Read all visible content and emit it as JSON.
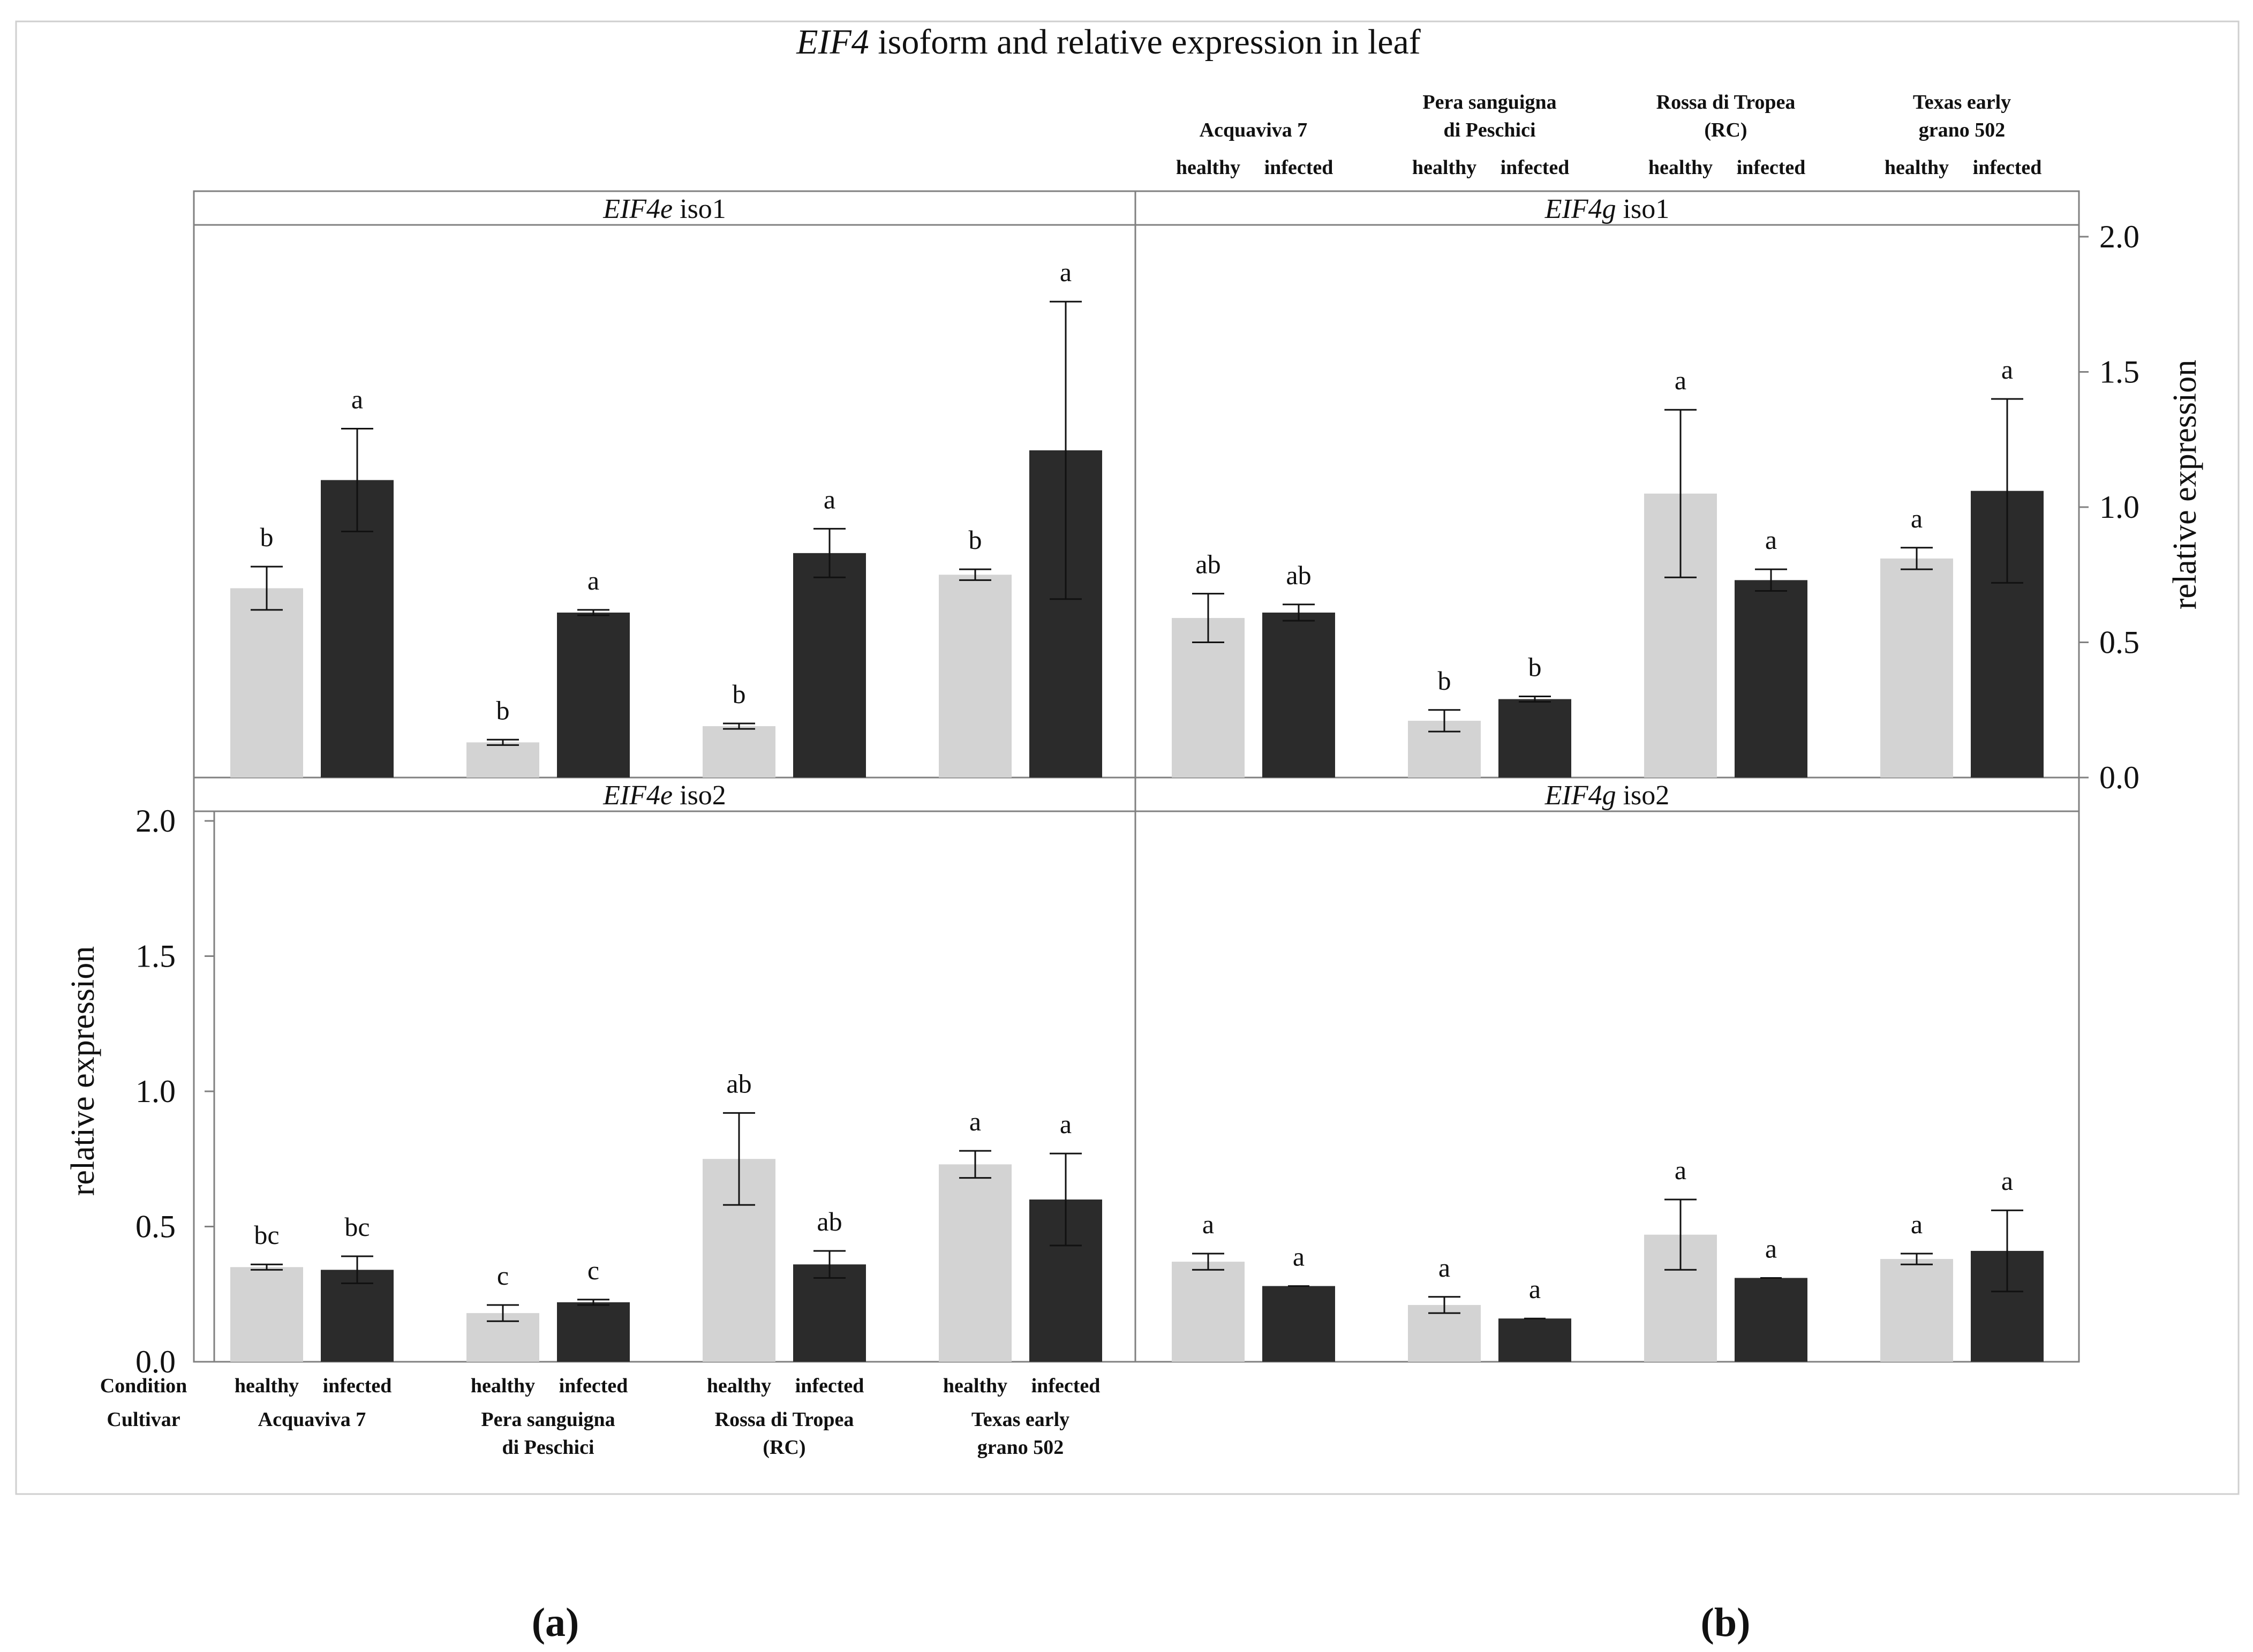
{
  "figure": {
    "title_italic": "EIF4",
    "title_rest": " isoform and relative expression in leaf",
    "ylabel": "relative expression",
    "condition_row_label": "Condition",
    "cultivar_row_label": "Cultivar",
    "conditions": [
      "healthy",
      "infected"
    ],
    "cultivars": [
      [
        "Acquaviva 7"
      ],
      [
        "Pera sanguigna",
        "di Peschici"
      ],
      [
        "Rossa di Tropea",
        "(RC)"
      ],
      [
        "Texas early",
        "grano 502"
      ]
    ],
    "yticks": [
      "0.0",
      "0.5",
      "1.0",
      "1.5",
      "2.0"
    ],
    "subfig_labels": [
      "(a)",
      "(b)"
    ],
    "colors": {
      "healthy": "#d3d3d3",
      "infected": "#2b2b2b",
      "frame": "#808080"
    }
  },
  "chart_data": [
    {
      "type": "bar",
      "panel": "EIF4e iso1",
      "panel_italic": "EIF4e",
      "panel_rest": " iso1",
      "ylim": [
        0,
        2.0
      ],
      "categories": [
        "Acquaviva 7",
        "Pera sanguigna di Peschici",
        "Rossa di Tropea (RC)",
        "Texas early grano 502"
      ],
      "series": [
        {
          "name": "healthy",
          "values": [
            0.7,
            0.13,
            0.19,
            0.75
          ],
          "err": [
            0.08,
            0.01,
            0.01,
            0.02
          ],
          "letters": [
            "b",
            "b",
            "b",
            "b"
          ]
        },
        {
          "name": "infected",
          "values": [
            1.1,
            0.61,
            0.83,
            1.21
          ],
          "err": [
            0.19,
            0.01,
            0.09,
            0.55
          ],
          "letters": [
            "a",
            "a",
            "a",
            "a"
          ]
        }
      ]
    },
    {
      "type": "bar",
      "panel": "EIF4g iso1",
      "panel_italic": "EIF4g",
      "panel_rest": " iso1",
      "ylim": [
        0,
        2.0
      ],
      "categories": [
        "Acquaviva 7",
        "Pera sanguigna di Peschici",
        "Rossa di Tropea (RC)",
        "Texas early grano 502"
      ],
      "series": [
        {
          "name": "healthy",
          "values": [
            0.59,
            0.21,
            1.05,
            0.81
          ],
          "err": [
            0.09,
            0.04,
            0.31,
            0.04
          ],
          "letters": [
            "ab",
            "b",
            "a",
            "a"
          ]
        },
        {
          "name": "infected",
          "values": [
            0.61,
            0.29,
            0.73,
            1.06
          ],
          "err": [
            0.03,
            0.01,
            0.04,
            0.34
          ],
          "letters": [
            "ab",
            "b",
            "a",
            "a"
          ]
        }
      ]
    },
    {
      "type": "bar",
      "panel": "EIF4e iso2",
      "panel_italic": "EIF4e",
      "panel_rest": " iso2",
      "ylim": [
        0,
        2.0
      ],
      "categories": [
        "Acquaviva 7",
        "Pera sanguigna di Peschici",
        "Rossa di Tropea (RC)",
        "Texas early grano 502"
      ],
      "series": [
        {
          "name": "healthy",
          "values": [
            0.35,
            0.18,
            0.75,
            0.73
          ],
          "err": [
            0.01,
            0.03,
            0.17,
            0.05
          ],
          "letters": [
            "bc",
            "c",
            "ab",
            "a"
          ]
        },
        {
          "name": "infected",
          "values": [
            0.34,
            0.22,
            0.36,
            0.6
          ],
          "err": [
            0.05,
            0.01,
            0.05,
            0.17
          ],
          "letters": [
            "bc",
            "c",
            "ab",
            "a"
          ]
        }
      ]
    },
    {
      "type": "bar",
      "panel": "EIF4g iso2",
      "panel_italic": "EIF4g",
      "panel_rest": " iso2",
      "ylim": [
        0,
        2.0
      ],
      "categories": [
        "Acquaviva 7",
        "Pera sanguigna di Peschici",
        "Rossa di Tropea (RC)",
        "Texas early grano 502"
      ],
      "series": [
        {
          "name": "healthy",
          "values": [
            0.37,
            0.21,
            0.47,
            0.38
          ],
          "err": [
            0.03,
            0.03,
            0.13,
            0.02
          ],
          "letters": [
            "a",
            "a",
            "a",
            "a"
          ]
        },
        {
          "name": "infected",
          "values": [
            0.28,
            0.16,
            0.31,
            0.41
          ],
          "err": [
            0.0,
            0.0,
            0.0,
            0.15
          ],
          "letters": [
            "a",
            "a",
            "a",
            "a"
          ]
        }
      ]
    }
  ]
}
